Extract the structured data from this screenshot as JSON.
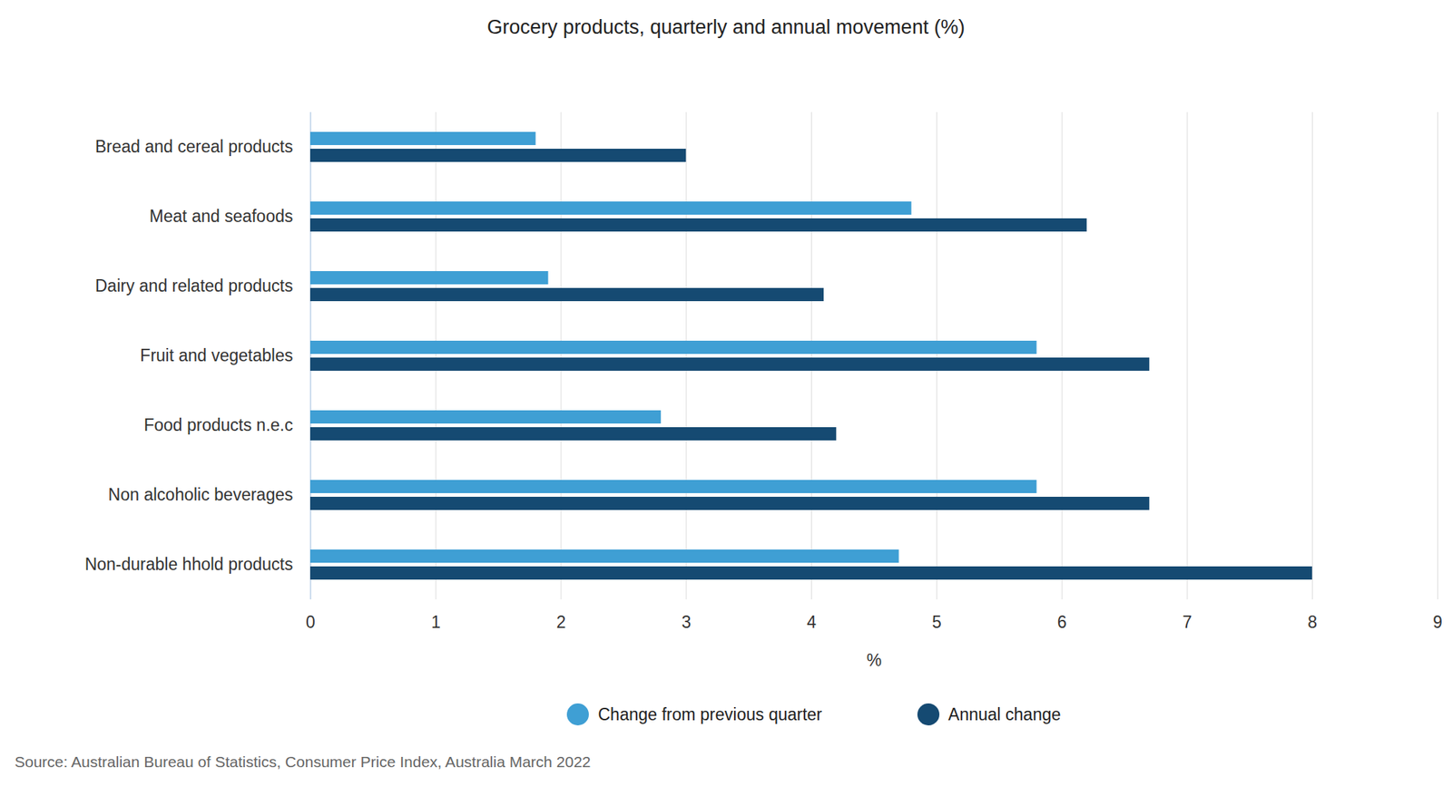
{
  "chart_data": {
    "type": "bar",
    "orientation": "horizontal",
    "title": "Grocery products, quarterly and annual movement (%)",
    "source": "Source: Australian Bureau of Statistics, Consumer Price Index, Australia March 2022",
    "categories": [
      "Bread and cereal products",
      "Meat and seafoods",
      "Dairy and related products",
      "Fruit and vegetables",
      "Food products n.e.c",
      "Non alcoholic beverages",
      "Non-durable hhold products"
    ],
    "series": [
      {
        "name": "Change from previous quarter",
        "color": "#3f9fd4",
        "values": [
          1.8,
          4.8,
          1.9,
          5.8,
          2.8,
          5.8,
          4.7
        ]
      },
      {
        "name": "Annual change",
        "color": "#154a72",
        "values": [
          3.0,
          6.2,
          4.1,
          6.7,
          4.2,
          6.7,
          8.0
        ]
      }
    ],
    "x_label": "%",
    "xlim": [
      0,
      9
    ],
    "xticks": [
      0,
      1,
      2,
      3,
      4,
      5,
      6,
      7,
      8,
      9
    ],
    "grid": true,
    "legend": "bottom"
  }
}
